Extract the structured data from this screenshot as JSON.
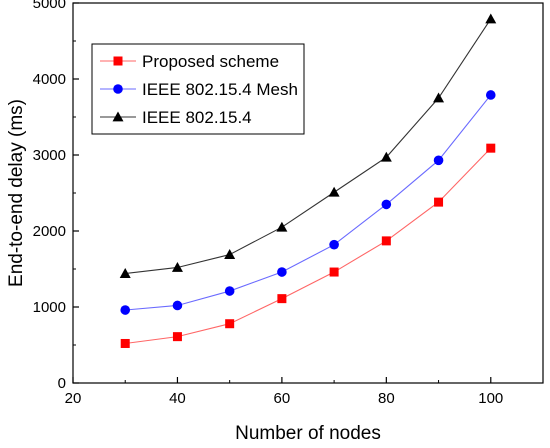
{
  "chart_data": {
    "type": "line",
    "title": "",
    "xlabel": "Number of nodes",
    "ylabel": "End-to-end delay (ms)",
    "xlim": [
      20,
      110
    ],
    "ylim": [
      0,
      5000
    ],
    "x_ticks": [
      20,
      40,
      60,
      80,
      100
    ],
    "y_ticks": [
      0,
      1000,
      2000,
      3000,
      4000,
      5000
    ],
    "grid": false,
    "legend_position": "top-left",
    "x": [
      30,
      40,
      50,
      60,
      70,
      80,
      90,
      100
    ],
    "series": [
      {
        "name": "Proposed scheme",
        "color": "#ff0000",
        "line_color": "#ff6666",
        "marker": "square",
        "values": [
          520,
          610,
          780,
          1110,
          1460,
          1870,
          2380,
          3090
        ]
      },
      {
        "name": "IEEE 802.15.4 Mesh",
        "color": "#0000ff",
        "line_color": "#6a6aff",
        "marker": "circle",
        "values": [
          960,
          1020,
          1210,
          1460,
          1820,
          2350,
          2930,
          3790
        ]
      },
      {
        "name": "IEEE 802.15.4",
        "color": "#000000",
        "line_color": "#333333",
        "marker": "triangle",
        "values": [
          1440,
          1520,
          1690,
          2050,
          2510,
          2970,
          3750,
          4790
        ]
      }
    ]
  }
}
